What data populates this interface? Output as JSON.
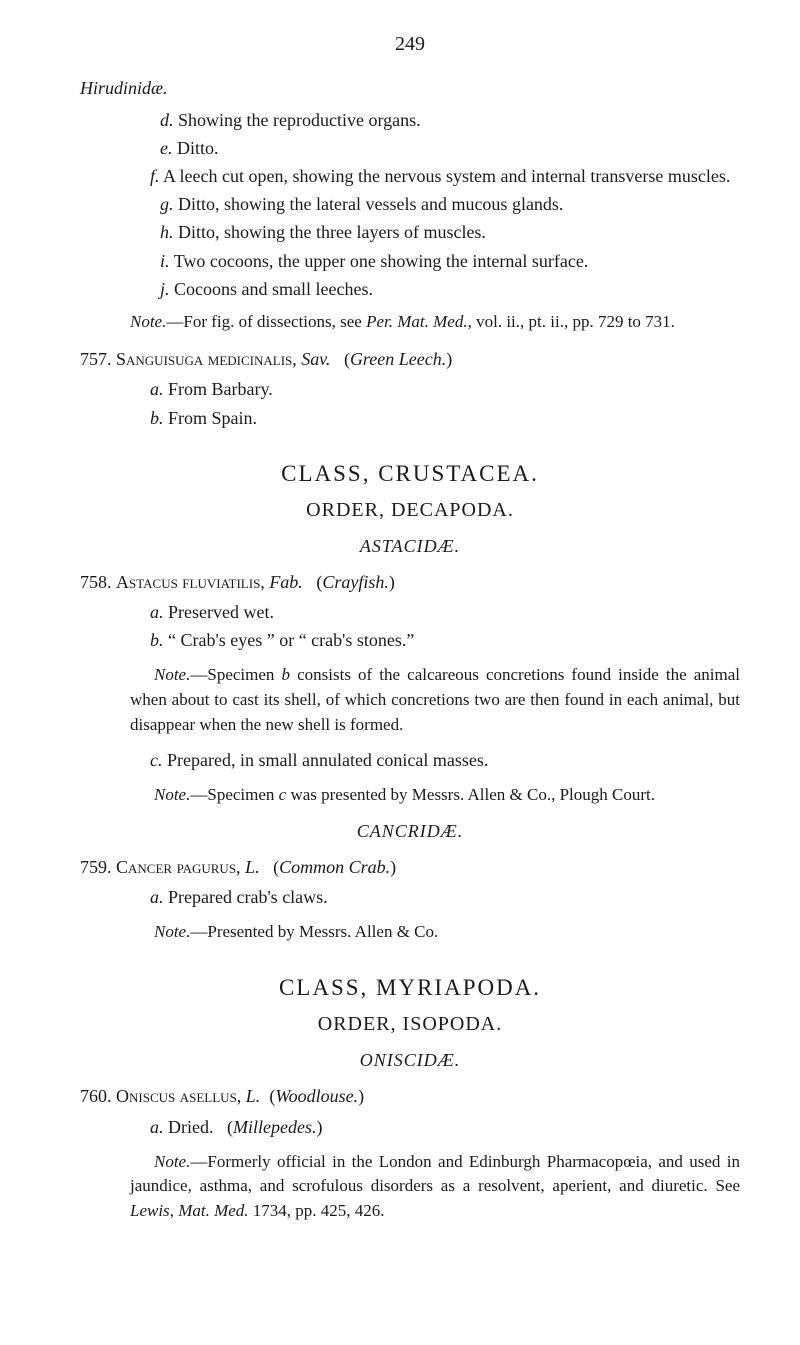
{
  "page_number": "249",
  "genus_header": "Hirudinidæ.",
  "hirud_items": {
    "d": "d. Showing the reproductive organs.",
    "e": "e. Ditto.",
    "f": "f. A leech cut open, showing the nervous system and internal transverse muscles.",
    "g": "g. Ditto, showing the lateral vessels and mucous glands.",
    "h": "h. Ditto, showing the three layers of muscles.",
    "i": "i. Two cocoons, the upper one showing the internal surface.",
    "j": "j. Cocoons and small leeches."
  },
  "hirud_note_prefix": "Note.",
  "hirud_note_text": "—For fig. of dissections, see Per. Mat. Med., vol. ii., pt. ii., pp. 729 to 731.",
  "entry_757": {
    "num": "757.",
    "species": "Sanguisuga medicinalis,",
    "auth": " Sav.",
    "common": "(Green Leech.)",
    "a": "a. From Barbary.",
    "b": "b. From Spain."
  },
  "class_crustacea": "CLASS, CRUSTACEA.",
  "order_decapoda": "ORDER, DECAPODA.",
  "family_astacidae": "ASTACIDÆ.",
  "entry_758": {
    "num": "758.",
    "species": "Astacus fluviatilis,",
    "auth": " Fab.",
    "common": "(Crayfish.)",
    "a": "a. Preserved wet.",
    "b": "b. “ Crab's eyes ” or “ crab's stones.”",
    "note1_prefix": "Note.",
    "note1": "—Specimen b consists of the calcareous concretions found inside the animal when about to cast its shell, of which concretions two are then found in each animal, but disappear when the new shell is formed.",
    "c": "c. Prepared, in small annulated conical masses.",
    "note2_prefix": "Note.",
    "note2": "—Specimen c was presented by Messrs. Allen & Co., Plough Court."
  },
  "family_cancridae": "CANCRIDÆ.",
  "entry_759": {
    "num": "759.",
    "species": "Cancer pagurus,",
    "auth": " L.",
    "common": "(Common Crab.)",
    "a": "a. Prepared crab's claws.",
    "note_prefix": "Note.",
    "note": "—Presented by Messrs. Allen & Co."
  },
  "class_myriapoda": "CLASS, MYRIAPODA.",
  "order_isopoda": "ORDER, ISOPODA.",
  "family_oniscidae": "ONISCIDÆ.",
  "entry_760": {
    "num": "760.",
    "species": "Oniscus asellus,",
    "auth": " L.",
    "common": "(Woodlouse.)",
    "a_prefix": "a. Dried.",
    "a_paren": "(Millepedes.)",
    "note_prefix": "Note.",
    "note": "—Formerly official in the London and Edinburgh Pharmacopœia, and used in jaundice, asthma, and scrofulous disorders as a resolvent, aperient, and diuretic. See Lewis, Mat. Med. 1734, pp. 425, 426."
  }
}
